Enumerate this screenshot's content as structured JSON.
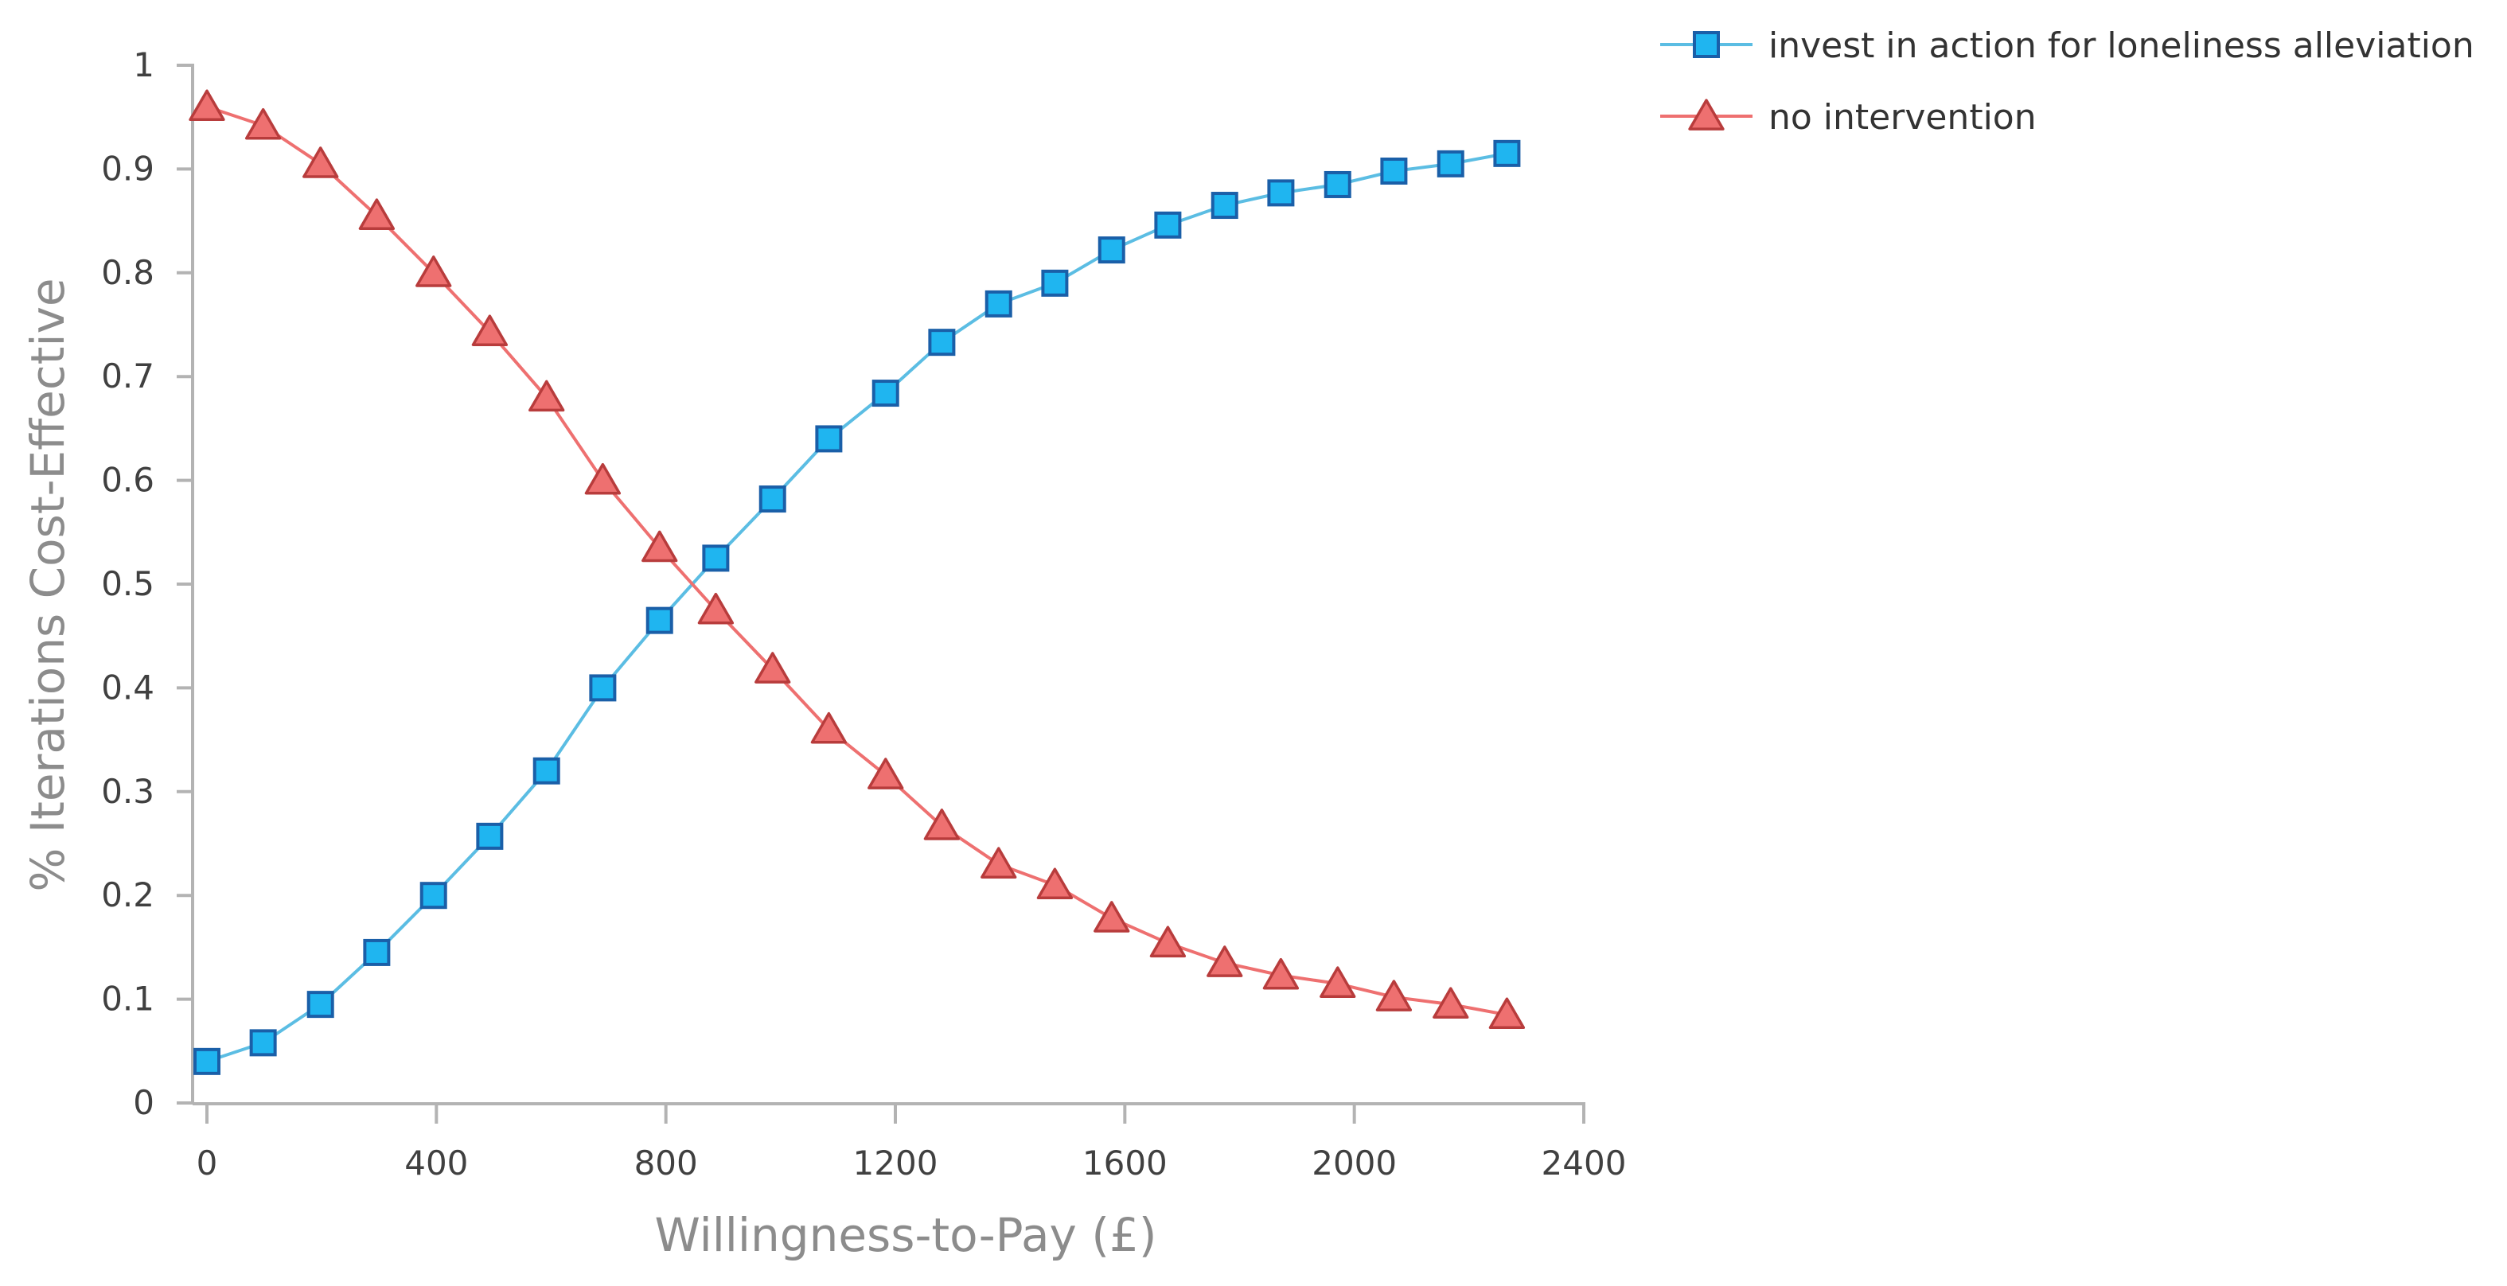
{
  "chart_data": {
    "type": "line",
    "title": "",
    "xlabel": "Willingness-to-Pay (£)",
    "ylabel": "% Iterations Cost-Effective",
    "xlim": [
      0,
      2400
    ],
    "ylim": [
      0,
      1
    ],
    "xticks": [
      0,
      400,
      800,
      1200,
      1600,
      2000,
      2400
    ],
    "yticks": [
      0,
      0.1,
      0.2,
      0.3,
      0.4,
      0.5,
      0.6,
      0.7,
      0.8,
      0.9,
      1
    ],
    "xtick_labels": [
      "0",
      "400",
      "800",
      "1200",
      "1600",
      "2000",
      "2400"
    ],
    "ytick_labels": [
      "0",
      "0.1",
      "0.2",
      "0.3",
      "0.4",
      "0.5",
      "0.6",
      "0.7",
      "0.8",
      "0.9",
      "1"
    ],
    "grid": false,
    "legend_position": "top-right",
    "x": [
      0,
      98,
      198,
      296,
      395,
      493,
      592,
      690,
      789,
      887,
      986,
      1084,
      1183,
      1281,
      1380,
      1478,
      1577,
      1675,
      1774,
      1872,
      1971,
      2069,
      2168,
      2266
    ],
    "series": [
      {
        "name": "invest in action for loneliness alleviation",
        "marker": "square",
        "color": "#1fb5f0",
        "line_color": "#5bbde3",
        "edge_color": "#1a5fa8",
        "values": [
          0.04,
          0.058,
          0.095,
          0.145,
          0.2,
          0.257,
          0.32,
          0.4,
          0.465,
          0.525,
          0.582,
          0.64,
          0.684,
          0.733,
          0.77,
          0.79,
          0.822,
          0.846,
          0.865,
          0.877,
          0.885,
          0.898,
          0.905,
          0.915
        ]
      },
      {
        "name": "no intervention",
        "marker": "triangle",
        "color": "#ee7070",
        "line_color": "#ee7070",
        "edge_color": "#b83c3c",
        "values": [
          0.96,
          0.942,
          0.905,
          0.855,
          0.8,
          0.743,
          0.68,
          0.6,
          0.535,
          0.475,
          0.418,
          0.36,
          0.316,
          0.267,
          0.23,
          0.21,
          0.178,
          0.154,
          0.135,
          0.123,
          0.115,
          0.102,
          0.095,
          0.085
        ]
      }
    ],
    "axis_color": "#b3b3b3"
  }
}
